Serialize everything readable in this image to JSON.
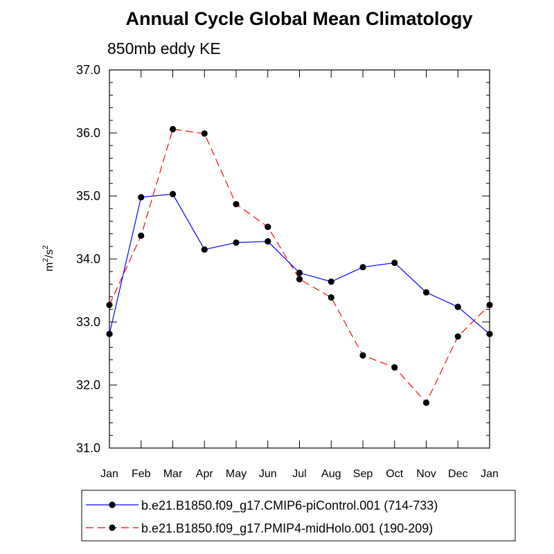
{
  "chart_data": {
    "type": "line",
    "title": "Annual Cycle Global Mean Climatology",
    "subtitle": "850mb eddy KE",
    "ylabel_base": "m",
    "ylabel_exp1": "2",
    "ylabel_mid": "/s",
    "ylabel_exp2": "2",
    "xlabel": "",
    "categories": [
      "Jan",
      "Feb",
      "Mar",
      "Apr",
      "May",
      "Jun",
      "Jul",
      "Aug",
      "Sep",
      "Oct",
      "Nov",
      "Dec",
      "Jan"
    ],
    "ylim": [
      31.0,
      37.0
    ],
    "yticks": [
      "31.0",
      "32.0",
      "33.0",
      "34.0",
      "35.0",
      "36.0",
      "37.0"
    ],
    "series": [
      {
        "name": "b.e21.B1850.f09_g17.CMIP6-piControl.001 (714-733)",
        "color": "#0000ff",
        "dash": "solid",
        "values": [
          32.81,
          34.98,
          35.03,
          34.15,
          34.26,
          34.28,
          33.78,
          33.64,
          33.87,
          33.94,
          33.47,
          33.24,
          32.81
        ]
      },
      {
        "name": "b.e21.B1850.f09_g17.PMIP4-midHolo.001 (190-209)",
        "color": "#ff0000",
        "dash": "dashed",
        "values": [
          33.27,
          34.37,
          36.06,
          35.99,
          34.87,
          34.51,
          33.68,
          33.39,
          32.47,
          32.28,
          31.72,
          32.77,
          33.27
        ]
      }
    ],
    "legend_position": "bottom"
  }
}
